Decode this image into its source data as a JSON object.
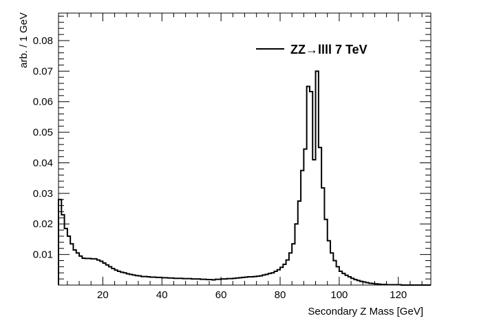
{
  "chart_data": {
    "type": "line",
    "style": "step-histogram",
    "xlabel": "Secondary Z Mass [GeV]",
    "ylabel": "arb. / 1 GeV",
    "xlim": [
      5,
      131
    ],
    "ylim": [
      0,
      0.089
    ],
    "x_ticks": [
      20,
      40,
      60,
      80,
      100,
      120
    ],
    "y_ticks": [
      0.01,
      0.02,
      0.03,
      0.04,
      0.05,
      0.06,
      0.07,
      0.08
    ],
    "x_tick_labels": [
      "20",
      "40",
      "60",
      "80",
      "100",
      "120"
    ],
    "y_tick_labels": [
      "0.01",
      "0.02",
      "0.03",
      "0.04",
      "0.05",
      "0.06",
      "0.07",
      "0.08"
    ],
    "grid": false,
    "legend_position": "top-right",
    "line_color": "#000000",
    "bin_width": 1,
    "bin_start": 5,
    "series": [
      {
        "name": "ZZ→llll 7 TeV",
        "values": [
          0.028,
          0.023,
          0.0185,
          0.016,
          0.0135,
          0.0115,
          0.0105,
          0.0095,
          0.0088,
          0.0087,
          0.0087,
          0.0086,
          0.0086,
          0.0082,
          0.0078,
          0.0072,
          0.0066,
          0.006,
          0.0054,
          0.0049,
          0.0045,
          0.0042,
          0.004,
          0.0037,
          0.0035,
          0.0033,
          0.0031,
          0.003,
          0.0028,
          0.0028,
          0.0027,
          0.0026,
          0.0026,
          0.0025,
          0.0025,
          0.0024,
          0.0024,
          0.0023,
          0.0023,
          0.0022,
          0.0022,
          0.0022,
          0.0021,
          0.0021,
          0.0021,
          0.002,
          0.002,
          0.002,
          0.0019,
          0.0019,
          0.0018,
          0.0018,
          0.0017,
          0.0019,
          0.0019,
          0.002,
          0.002,
          0.0021,
          0.0021,
          0.0022,
          0.0023,
          0.0024,
          0.0025,
          0.0026,
          0.0027,
          0.0027,
          0.0028,
          0.0029,
          0.003,
          0.0033,
          0.0035,
          0.0038,
          0.004,
          0.0045,
          0.005,
          0.0058,
          0.0068,
          0.0082,
          0.0105,
          0.0135,
          0.02,
          0.0275,
          0.0375,
          0.0445,
          0.065,
          0.0633,
          0.041,
          0.07,
          0.045,
          0.0318,
          0.0215,
          0.0145,
          0.0105,
          0.008,
          0.006,
          0.0045,
          0.0038,
          0.0032,
          0.0027,
          0.0022,
          0.0018,
          0.0015,
          0.0012,
          0.001,
          0.0008,
          0.0006,
          0.0005,
          0.0004,
          0.0003,
          0.0002,
          0.0002,
          0.0001,
          0.0001,
          0.0001,
          0.0001,
          0.0001,
          0.0,
          0.0,
          0.0,
          0.0,
          0.0,
          0.0,
          0.0,
          0.0,
          0.0,
          0.0
        ]
      }
    ]
  }
}
